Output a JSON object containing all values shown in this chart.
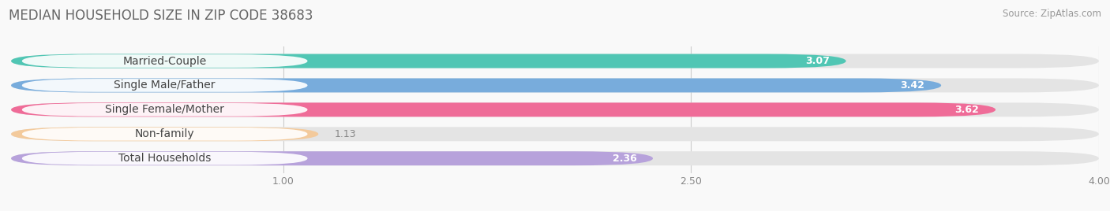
{
  "title": "MEDIAN HOUSEHOLD SIZE IN ZIP CODE 38683",
  "source": "Source: ZipAtlas.com",
  "categories": [
    "Married-Couple",
    "Single Male/Father",
    "Single Female/Mother",
    "Non-family",
    "Total Households"
  ],
  "values": [
    3.07,
    3.42,
    3.62,
    1.13,
    2.36
  ],
  "bar_colors": [
    "#45c4b0",
    "#6fa8dc",
    "#f06292",
    "#f5c896",
    "#b39ddb"
  ],
  "bar_bg_color": "#e8e8e8",
  "xlim": [
    0,
    4.0
  ],
  "xticks": [
    1.0,
    2.5,
    4.0
  ],
  "title_fontsize": 12,
  "source_fontsize": 8.5,
  "label_fontsize": 10,
  "value_fontsize": 9,
  "background_color": "#f9f9f9",
  "bar_height": 0.58
}
